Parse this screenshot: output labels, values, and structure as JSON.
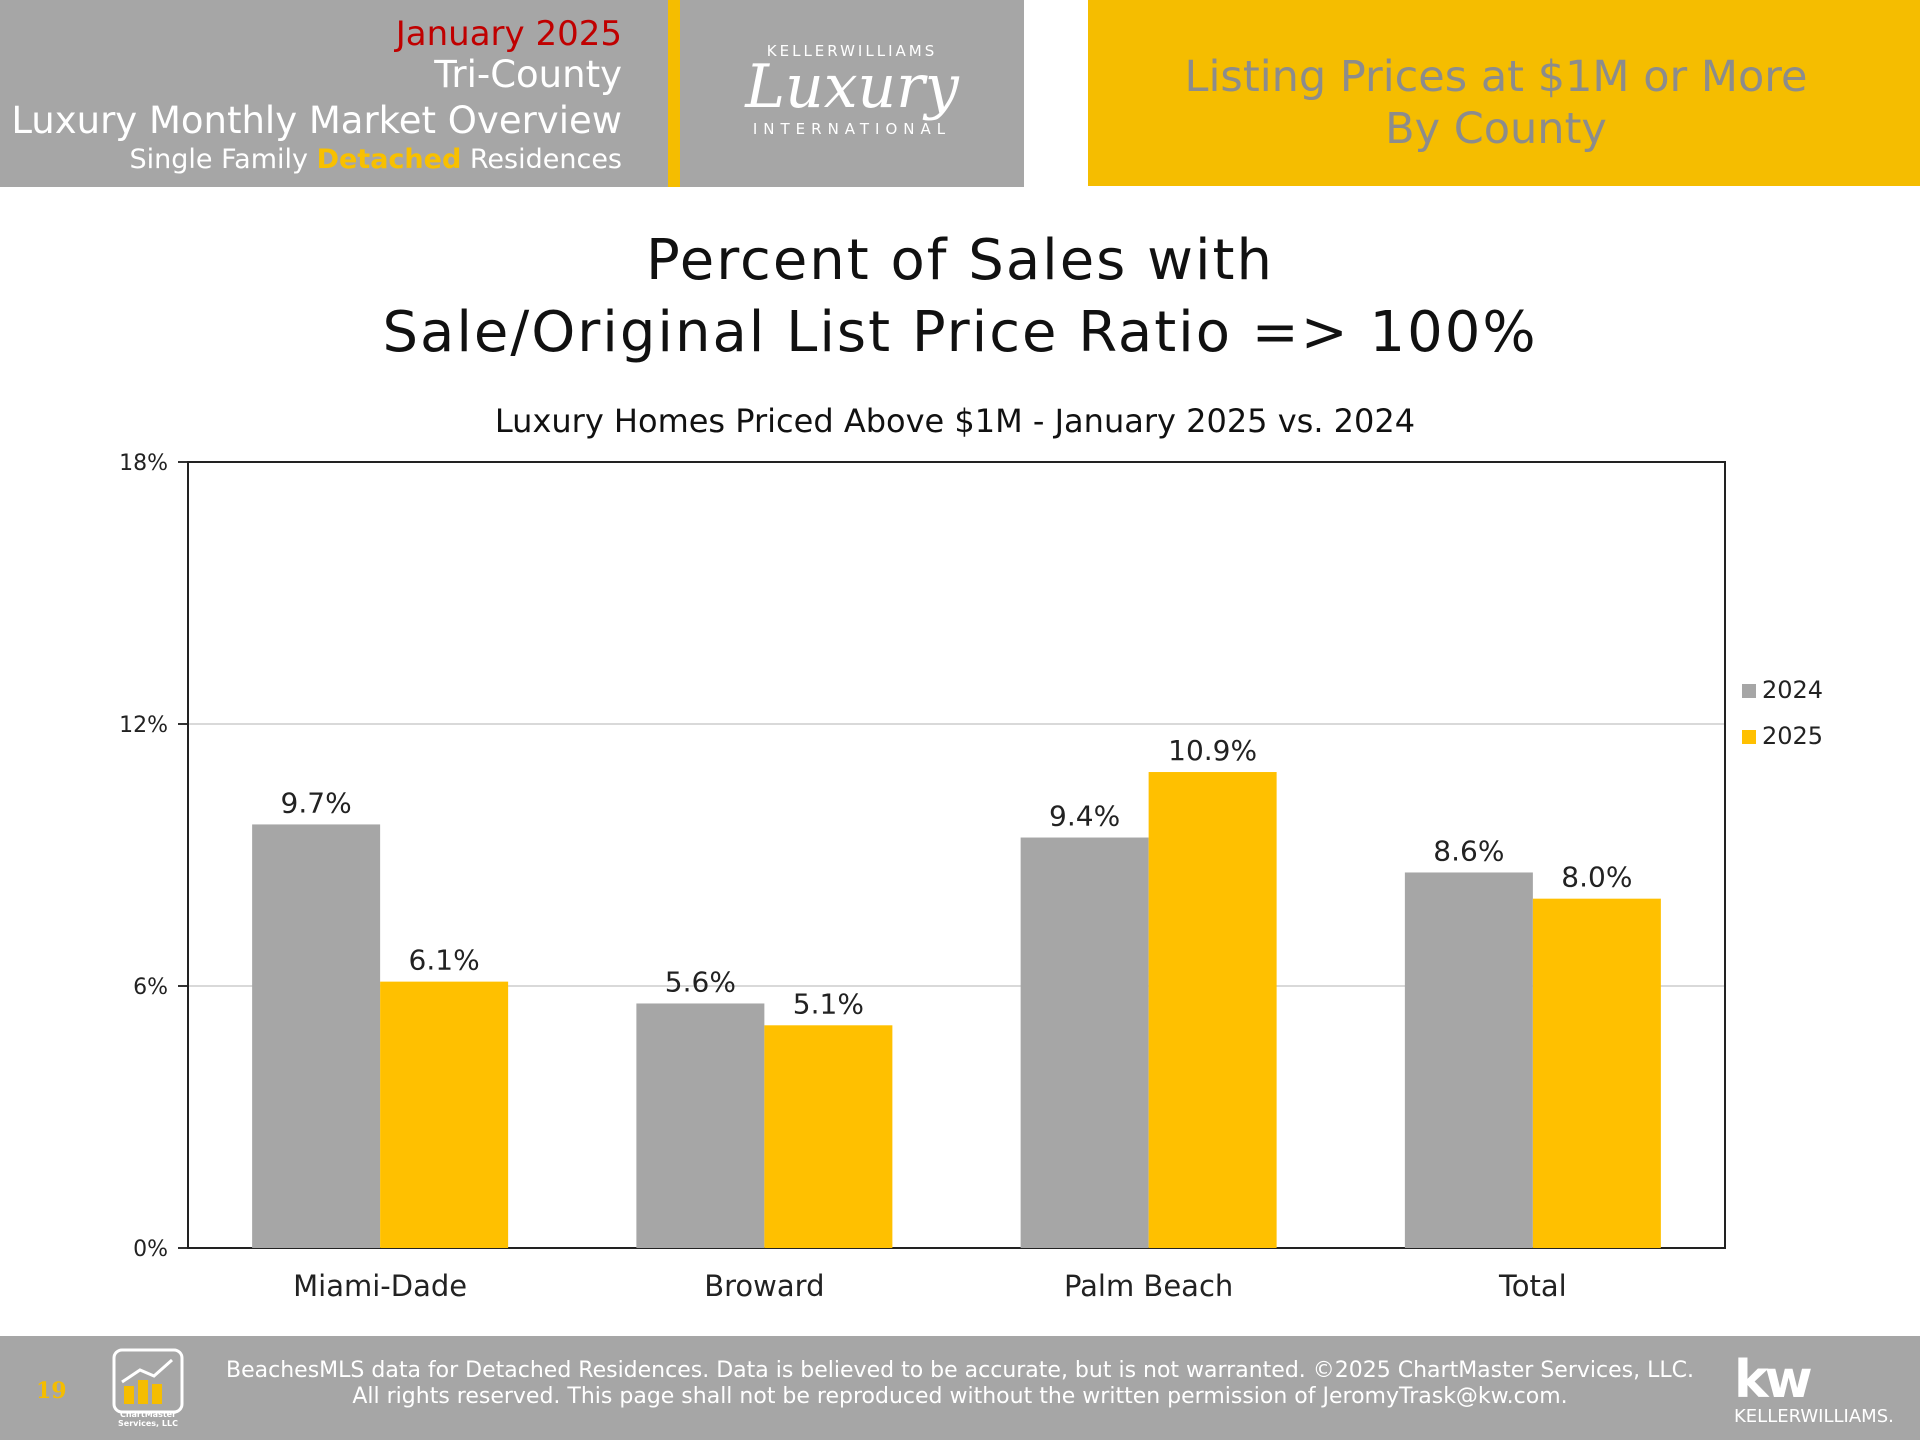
{
  "header": {
    "date": "January 2025",
    "region": "Tri-County",
    "report": "Luxury Monthly Market Overview",
    "segment_pre": "Single Family ",
    "segment_highlight": "Detached",
    "segment_post": " Residences",
    "logo_top": "KELLERWILLIAMS",
    "logo_main": "Luxury",
    "logo_bottom": "INTERNATIONAL",
    "section_line1": "Listing Prices at $1M or More",
    "section_line2": "By County"
  },
  "chart_data": {
    "type": "bar",
    "title_line1": "Percent of Sales with",
    "title_line2": "Sale/Original List Price Ratio => 100%",
    "subtitle": "Luxury Homes Priced Above $1M - January 2025 vs. 2024",
    "categories": [
      "Miami-Dade",
      "Broward",
      "Palm Beach",
      "Total"
    ],
    "series": [
      {
        "name": "2024",
        "color": "#a6a6a6",
        "values": [
          9.7,
          5.6,
          9.4,
          8.6
        ],
        "labels": [
          "9.7%",
          "5.6%",
          "9.4%",
          "8.6%"
        ]
      },
      {
        "name": "2025",
        "color": "#ffc000",
        "values": [
          6.1,
          5.1,
          10.9,
          8.0
        ],
        "labels": [
          "6.1%",
          "5.1%",
          "10.9%",
          "8.0%"
        ]
      }
    ],
    "ylim": [
      0,
      18
    ],
    "yticks": [
      0,
      6,
      12,
      18
    ],
    "ytick_labels": [
      "0%",
      "6%",
      "12%",
      "18%"
    ],
    "grid": true,
    "legend": "right"
  },
  "footer": {
    "page": "19",
    "logo_text": "ChartMaster Services, LLC",
    "line1": "BeachesMLS data for Detached Residences.  Data is believed to be accurate, but is not warranted.   ©2025  ChartMaster Services, LLC.",
    "line2": "All rights reserved. This page shall not be reproduced without the written permission of JeromyTrask@kw.com.",
    "brand": "KELLERWILLIAMS.",
    "brand_short": "kw"
  }
}
